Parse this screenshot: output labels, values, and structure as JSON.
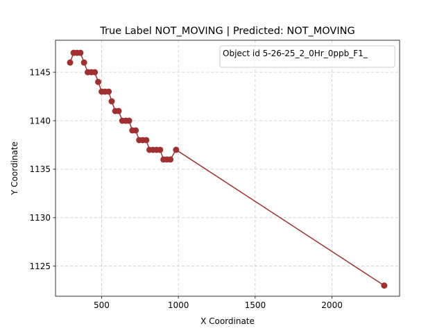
{
  "chart_data": {
    "type": "line",
    "title": "True Label NOT_MOVING | Predicted: NOT_MOVING",
    "xlabel": "X Coordinate",
    "ylabel": "Y Coordinate",
    "xlim": [
      200,
      2440
    ],
    "ylim": [
      1121.9,
      1148.3
    ],
    "x_ticks": [
      500,
      1000,
      1500,
      2000
    ],
    "y_ticks": [
      1125,
      1130,
      1135,
      1140,
      1145
    ],
    "x_tick_labels": [
      "500",
      "1000",
      "1500",
      "2000"
    ],
    "y_tick_labels": [
      "1125",
      "1130",
      "1135",
      "1140",
      "1145"
    ],
    "grid": true,
    "legend": {
      "position": "top-right",
      "text": "Object id 5-26-25_2_0Hr_0ppb_F1_"
    },
    "series": [
      {
        "color": "#a03030",
        "marker": "circle",
        "x": [
          295,
          318,
          340,
          362,
          386,
          410,
          433,
          456,
          478,
          501,
          523,
          546,
          566,
          589,
          611,
          635,
          658,
          679,
          700,
          722,
          745,
          768,
          791,
          812,
          835,
          858,
          881,
          903,
          925,
          948,
          985,
          2340
        ],
        "y": [
          1146,
          1147,
          1147,
          1147,
          1146,
          1145,
          1145,
          1145,
          1144,
          1143,
          1143,
          1143,
          1142,
          1141,
          1141,
          1140,
          1140,
          1140,
          1139,
          1139,
          1138,
          1138,
          1138,
          1137,
          1137,
          1137,
          1137,
          1136,
          1136,
          1136,
          1137,
          1123
        ]
      }
    ]
  }
}
